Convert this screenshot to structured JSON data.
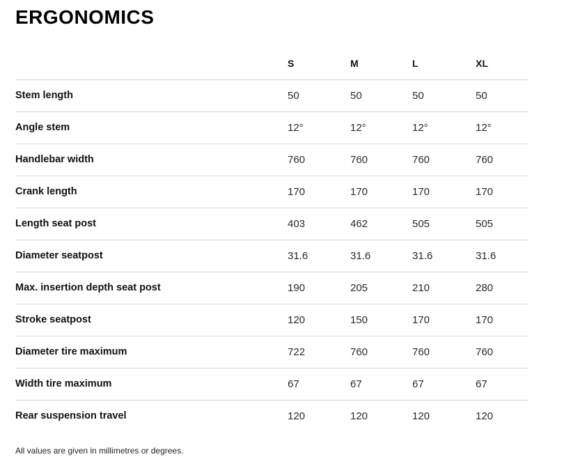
{
  "page": {
    "title": "ERGONOMICS",
    "footnote": "All values are given in millimetres or degrees."
  },
  "table": {
    "columns": [
      "S",
      "M",
      "L",
      "XL"
    ],
    "rows": [
      {
        "label": "Stem length",
        "values": [
          "50",
          "50",
          "50",
          "50"
        ]
      },
      {
        "label": "Angle stem",
        "values": [
          "12°",
          "12°",
          "12°",
          "12°"
        ]
      },
      {
        "label": "Handlebar width",
        "values": [
          "760",
          "760",
          "760",
          "760"
        ]
      },
      {
        "label": "Crank length",
        "values": [
          "170",
          "170",
          "170",
          "170"
        ]
      },
      {
        "label": "Length seat post",
        "values": [
          "403",
          "462",
          "505",
          "505"
        ]
      },
      {
        "label": "Diameter seatpost",
        "values": [
          "31.6",
          "31.6",
          "31.6",
          "31.6"
        ]
      },
      {
        "label": "Max. insertion depth seat post",
        "values": [
          "190",
          "205",
          "210",
          "280"
        ]
      },
      {
        "label": "Stroke seatpost",
        "values": [
          "120",
          "150",
          "170",
          "170"
        ]
      },
      {
        "label": "Diameter tire maximum",
        "values": [
          "722",
          "760",
          "760",
          "760"
        ]
      },
      {
        "label": "Width tire maximum",
        "values": [
          "67",
          "67",
          "67",
          "67"
        ]
      },
      {
        "label": "Rear suspension travel",
        "values": [
          "120",
          "120",
          "120",
          "120"
        ]
      }
    ]
  },
  "colors": {
    "text": "#111111",
    "divider": "#d8d8d8",
    "background": "#ffffff"
  }
}
